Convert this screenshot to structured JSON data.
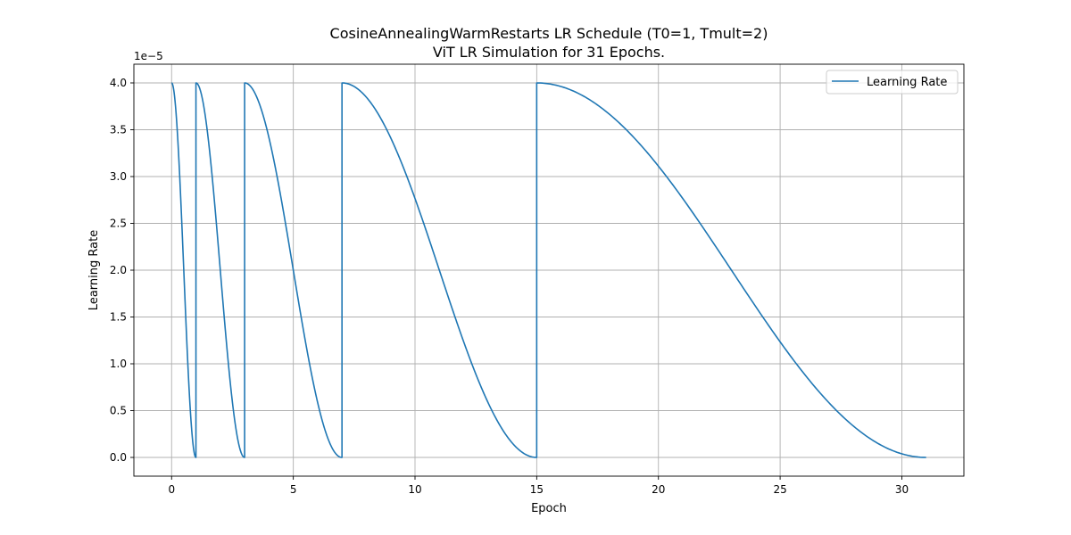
{
  "chart_data": {
    "type": "line",
    "title": "CosineAnnealingWarmRestarts LR Schedule (T0=1, Tmult=2)",
    "subtitle": "ViT LR Simulation for 31 Epochs.",
    "xlabel": "Epoch",
    "ylabel": "Learning Rate",
    "y_offset_label": "1e−5",
    "xlim": [
      -1.55,
      32.55
    ],
    "ylim": [
      -0.2,
      4.2
    ],
    "x_ticks": [
      0,
      5,
      10,
      15,
      20,
      25,
      30
    ],
    "x_tick_labels": [
      "0",
      "5",
      "10",
      "15",
      "20",
      "25",
      "30"
    ],
    "y_ticks": [
      0.0,
      0.5,
      1.0,
      1.5,
      2.0,
      2.5,
      3.0,
      3.5,
      4.0
    ],
    "y_tick_labels": [
      "0.0",
      "0.5",
      "1.0",
      "1.5",
      "2.0",
      "2.5",
      "3.0",
      "3.5",
      "4.0"
    ],
    "grid": true,
    "legend_position": "top-right",
    "series": [
      {
        "name": "Learning Rate",
        "color": "#1f77b4",
        "lr_max": 4.0,
        "lr_min": 0.0,
        "cycles": [
          {
            "start_epoch": 0,
            "end_epoch": 1
          },
          {
            "start_epoch": 1,
            "end_epoch": 3
          },
          {
            "start_epoch": 3,
            "end_epoch": 7
          },
          {
            "start_epoch": 7,
            "end_epoch": 15
          },
          {
            "start_epoch": 15,
            "end_epoch": 31
          }
        ]
      }
    ]
  }
}
